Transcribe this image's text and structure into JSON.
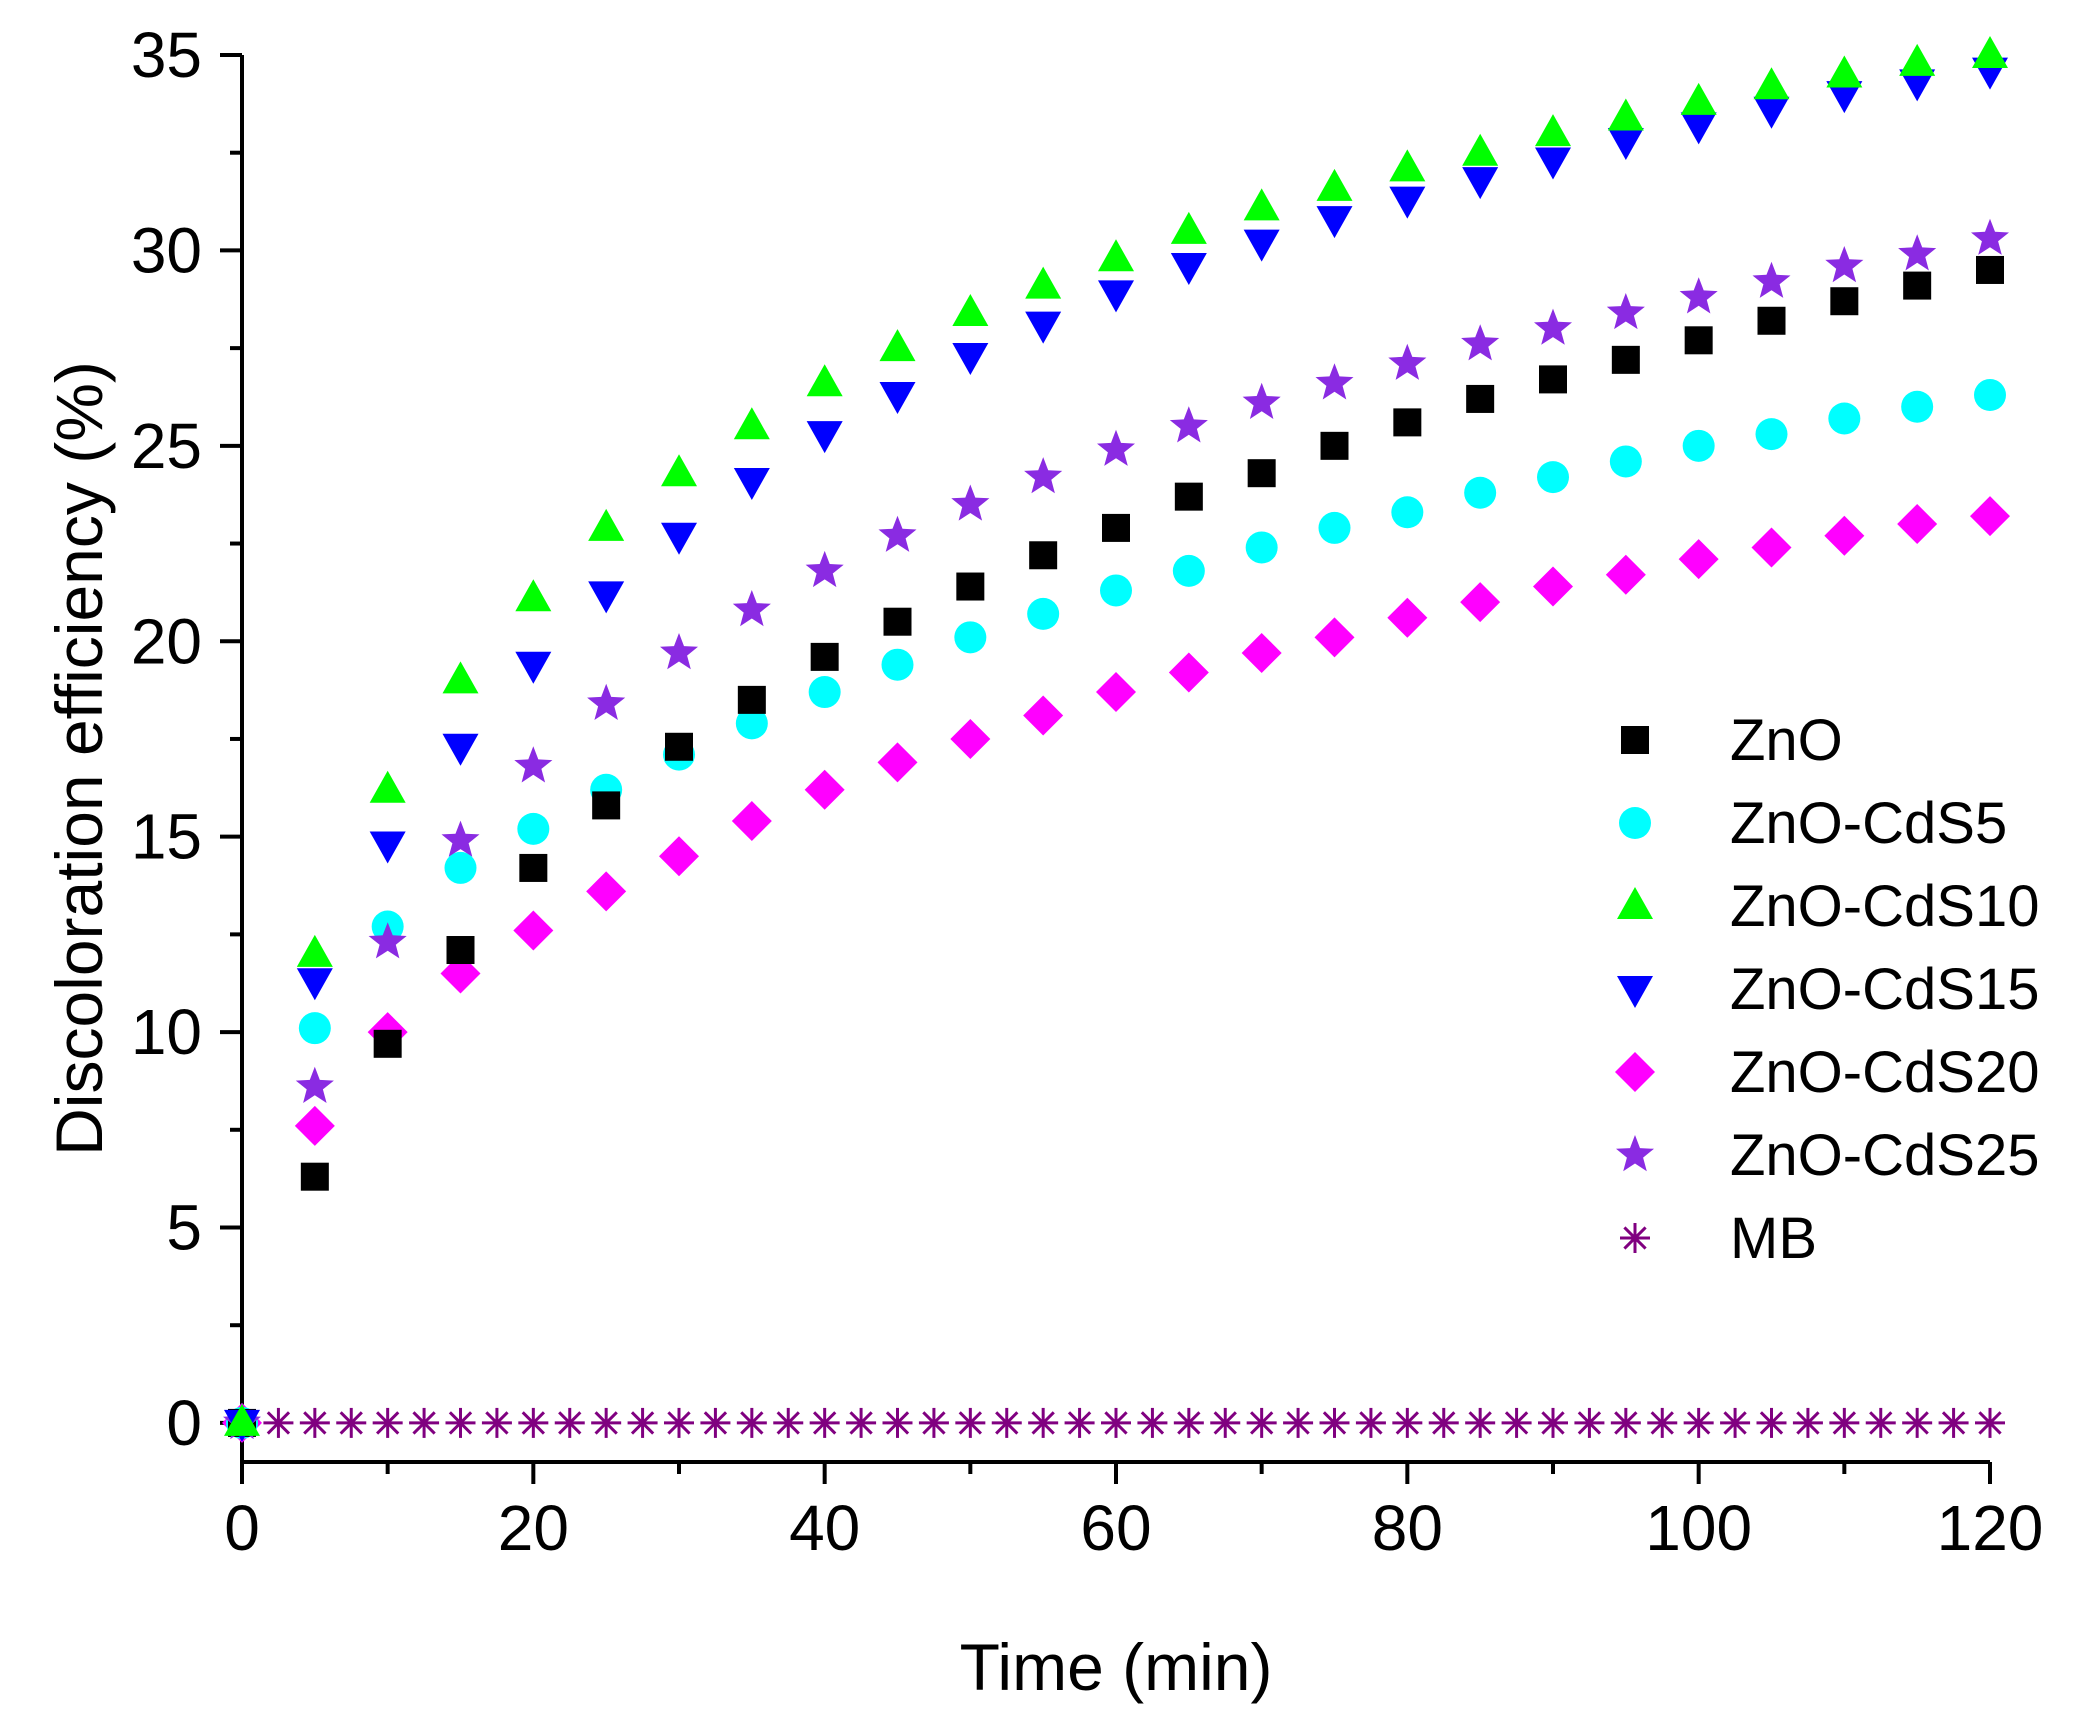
{
  "chart_data": {
    "type": "scatter",
    "title": "",
    "xlabel": "Time (min)",
    "ylabel": "Discoloration efficiency (%)",
    "xlim": [
      0,
      120
    ],
    "ylim": [
      -1,
      35
    ],
    "xticks": [
      0,
      20,
      40,
      60,
      80,
      100,
      120
    ],
    "yticks": [
      0,
      5,
      10,
      15,
      20,
      25,
      30,
      35
    ],
    "grid": false,
    "legend_position": "right",
    "x": [
      0,
      5,
      10,
      15,
      20,
      25,
      30,
      35,
      40,
      45,
      50,
      55,
      60,
      65,
      70,
      75,
      80,
      85,
      90,
      95,
      100,
      105,
      110,
      115,
      120
    ],
    "series": [
      {
        "name": "ZnO",
        "marker": "square",
        "color": "#000000",
        "values": [
          0,
          6.3,
          9.7,
          12.1,
          14.2,
          15.8,
          17.3,
          18.5,
          19.6,
          20.5,
          21.4,
          22.2,
          22.9,
          23.7,
          24.3,
          25.0,
          25.6,
          26.2,
          26.7,
          27.2,
          27.7,
          28.2,
          28.7,
          29.1,
          29.5
        ]
      },
      {
        "name": "ZnO-CdS5",
        "marker": "circle",
        "color": "#00ffff",
        "values": [
          0,
          10.1,
          12.7,
          14.2,
          15.2,
          16.2,
          17.1,
          17.9,
          18.7,
          19.4,
          20.1,
          20.7,
          21.3,
          21.8,
          22.4,
          22.9,
          23.3,
          23.8,
          24.2,
          24.6,
          25.0,
          25.3,
          25.7,
          26.0,
          26.3
        ]
      },
      {
        "name": "ZnO-CdS10",
        "marker": "triangle-up",
        "color": "#00ff00",
        "values": [
          0,
          12.0,
          16.2,
          19.0,
          21.1,
          22.9,
          24.3,
          25.5,
          26.6,
          27.5,
          28.4,
          29.1,
          29.8,
          30.5,
          31.1,
          31.6,
          32.1,
          32.5,
          33.0,
          33.4,
          33.8,
          34.2,
          34.5,
          34.8,
          35.0
        ]
      },
      {
        "name": "ZnO-CdS15",
        "marker": "triangle-down",
        "color": "#0000ff",
        "values": [
          0,
          11.3,
          14.8,
          17.3,
          19.4,
          21.2,
          22.7,
          24.1,
          25.3,
          26.3,
          27.3,
          28.1,
          28.9,
          29.6,
          30.2,
          30.8,
          31.3,
          31.8,
          32.3,
          32.8,
          33.2,
          33.6,
          34.0,
          34.3,
          34.6
        ]
      },
      {
        "name": "ZnO-CdS20",
        "marker": "diamond",
        "color": "#ff00ff",
        "values": [
          0,
          7.6,
          10.0,
          11.5,
          12.6,
          13.6,
          14.5,
          15.4,
          16.2,
          16.9,
          17.5,
          18.1,
          18.7,
          19.2,
          19.7,
          20.1,
          20.6,
          21.0,
          21.4,
          21.7,
          22.1,
          22.4,
          22.7,
          23.0,
          23.2
        ]
      },
      {
        "name": "ZnO-CdS25",
        "marker": "star",
        "color": "#8a2be2",
        "values": [
          0,
          8.6,
          12.3,
          14.9,
          16.8,
          18.4,
          19.7,
          20.8,
          21.8,
          22.7,
          23.5,
          24.2,
          24.9,
          25.5,
          26.1,
          26.6,
          27.1,
          27.6,
          28.0,
          28.4,
          28.8,
          29.2,
          29.6,
          29.9,
          30.3
        ]
      },
      {
        "name": "MB",
        "marker": "asterisk",
        "color": "#800080",
        "x": [
          0,
          2.5,
          5,
          7.5,
          10,
          12.5,
          15,
          17.5,
          20,
          22.5,
          25,
          27.5,
          30,
          32.5,
          35,
          37.5,
          40,
          42.5,
          45,
          47.5,
          50,
          52.5,
          55,
          57.5,
          60,
          62.5,
          65,
          67.5,
          70,
          72.5,
          75,
          77.5,
          80,
          82.5,
          85,
          87.5,
          90,
          92.5,
          95,
          97.5,
          100,
          102.5,
          105,
          107.5,
          110,
          112.5,
          115,
          117.5,
          120
        ],
        "values": [
          0,
          0,
          0,
          0,
          0,
          0,
          0,
          0,
          0,
          0,
          0,
          0,
          0,
          0,
          0,
          0,
          0,
          0,
          0,
          0,
          0,
          0,
          0,
          0,
          0,
          0,
          0,
          0,
          0,
          0,
          0,
          0,
          0,
          0,
          0,
          0,
          0,
          0,
          0,
          0,
          0,
          0,
          0,
          0,
          0,
          0,
          0,
          0,
          0
        ]
      }
    ]
  }
}
